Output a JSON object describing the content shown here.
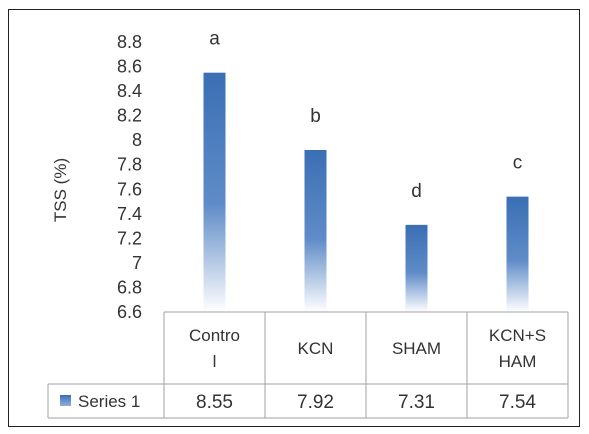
{
  "chart_data": {
    "type": "bar",
    "ylabel": "TSS (%)",
    "ylim": [
      6.6,
      8.8
    ],
    "yticks": [
      "8.8",
      "8.6",
      "8.4",
      "8.2",
      "8",
      "7.8",
      "7.6",
      "7.4",
      "7.2",
      "7",
      "6.8",
      "6.6"
    ],
    "categories": [
      [
        "Contro",
        "l"
      ],
      [
        "KCN"
      ],
      [
        "SHAM"
      ],
      [
        "KCN+S",
        "HAM"
      ]
    ],
    "series": [
      {
        "name": "Series 1",
        "values": [
          8.55,
          7.92,
          7.31,
          7.54
        ],
        "value_labels": [
          "8.55",
          "7.92",
          "7.31",
          "7.54"
        ]
      }
    ],
    "annotations": [
      "a",
      "b",
      "d",
      "c"
    ],
    "legend": "data-table",
    "grid": false,
    "bar_color": "#3a6fb4",
    "bar_color_fade": "#ffffff"
  }
}
